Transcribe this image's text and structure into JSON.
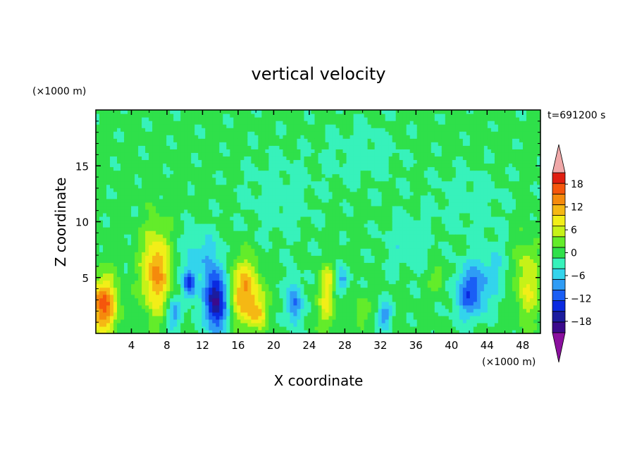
{
  "chart_data": {
    "type": "heatmap",
    "title": "vertical velocity",
    "xlabel": "X coordinate",
    "ylabel": "Z coordinate",
    "x_unit": "(×1000 m)",
    "y_unit": "(×1000 m)",
    "time_label": "t=691200 s",
    "xlim": [
      0,
      50
    ],
    "ylim": [
      0,
      20
    ],
    "x_ticks": [
      4,
      8,
      12,
      16,
      20,
      24,
      28,
      32,
      36,
      40,
      44,
      48
    ],
    "y_ticks": [
      5,
      10,
      15
    ],
    "colorbar": {
      "levels": [
        -21,
        -18,
        -15,
        -12,
        -9,
        -6,
        -3,
        0,
        3,
        6,
        9,
        12,
        15,
        18,
        21
      ],
      "tick_labels": [
        18,
        12,
        6,
        0,
        -6,
        -12,
        -18
      ],
      "colors": [
        "#3b0a8c",
        "#1c1c9e",
        "#0a2ae0",
        "#1a5ef5",
        "#2f9cf5",
        "#33d4ec",
        "#37f2bb",
        "#2fe04a",
        "#63ec2a",
        "#c6f218",
        "#f2ee18",
        "#f5b814",
        "#f58a0c",
        "#f5560c",
        "#e01e10"
      ],
      "under_color": "#8a0f9e",
      "over_color": "#f0a8a8"
    },
    "background_value": 1,
    "features": [
      {
        "x": 0.8,
        "z": 2.5,
        "amp": 18,
        "sx": 1.1,
        "sz": 1.8
      },
      {
        "x": 6.8,
        "z": 5.5,
        "amp": 15,
        "sx": 1.1,
        "sz": 2.6
      },
      {
        "x": 10.5,
        "z": 4.5,
        "amp": -14,
        "sx": 0.5,
        "sz": 1.0
      },
      {
        "x": 8.8,
        "z": 1.7,
        "amp": -9,
        "sx": 0.6,
        "sz": 1.0
      },
      {
        "x": 13.5,
        "z": 3.0,
        "amp": -20,
        "sx": 0.9,
        "sz": 2.0
      },
      {
        "x": 16.8,
        "z": 3.8,
        "amp": 14,
        "sx": 1.2,
        "sz": 2.0
      },
      {
        "x": 18.2,
        "z": 1.8,
        "amp": 8,
        "sx": 0.8,
        "sz": 1.0
      },
      {
        "x": 11.8,
        "z": 7.2,
        "amp": -5,
        "sx": 1.5,
        "sz": 1.5
      },
      {
        "x": 22.3,
        "z": 2.7,
        "amp": -11,
        "sx": 0.6,
        "sz": 1.4
      },
      {
        "x": 26.0,
        "z": 2.5,
        "amp": 9,
        "sx": 0.6,
        "sz": 1.6
      },
      {
        "x": 26.2,
        "z": 5.0,
        "amp": 7,
        "sx": 0.5,
        "sz": 0.8
      },
      {
        "x": 27.8,
        "z": 4.8,
        "amp": -8,
        "sx": 0.5,
        "sz": 0.8
      },
      {
        "x": 29.8,
        "z": 2.0,
        "amp": 5,
        "sx": 0.6,
        "sz": 1.0
      },
      {
        "x": 32.5,
        "z": 1.6,
        "amp": -8,
        "sx": 0.6,
        "sz": 0.9
      },
      {
        "x": 42.0,
        "z": 3.5,
        "amp": -11,
        "sx": 1.2,
        "sz": 1.6
      },
      {
        "x": 44.0,
        "z": 5.5,
        "amp": -5,
        "sx": 1.5,
        "sz": 2.0
      },
      {
        "x": 48.5,
        "z": 4.5,
        "amp": 9,
        "sx": 0.9,
        "sz": 2.5
      },
      {
        "x": 38.5,
        "z": 5.0,
        "amp": 5,
        "sx": 0.6,
        "sz": 0.8
      },
      {
        "x": 35.0,
        "z": 8.0,
        "amp": -3,
        "sx": 2.0,
        "sz": 2.0
      },
      {
        "x": 20.5,
        "z": 12.0,
        "amp": -2.5,
        "sx": 3.0,
        "sz": 3.0
      },
      {
        "x": 30.0,
        "z": 16.0,
        "amp": -2.5,
        "sx": 3.0,
        "sz": 2.0
      },
      {
        "x": 42.0,
        "z": 12.0,
        "amp": -2.5,
        "sx": 3.0,
        "sz": 2.0
      }
    ]
  }
}
